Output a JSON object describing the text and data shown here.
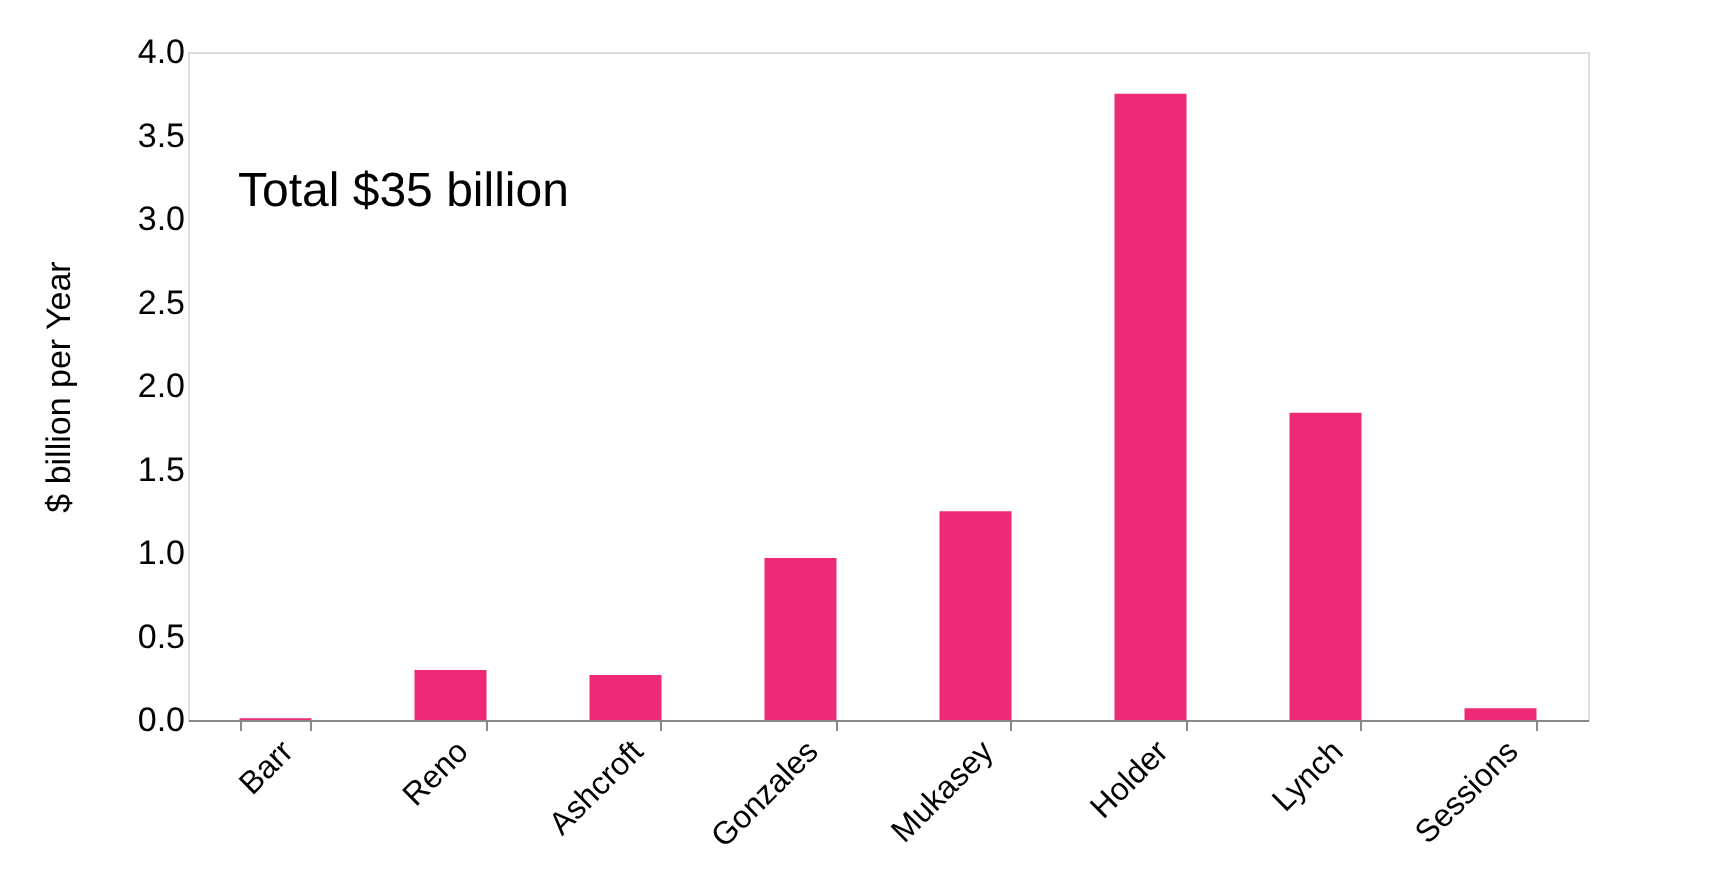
{
  "chart_data": {
    "type": "bar",
    "ylabel": "$ billion per Year",
    "categories": [
      "Barr",
      "Reno",
      "Ashcroft",
      "Gonzales",
      "Mukasey",
      "Holder",
      "Lynch",
      "Sessions"
    ],
    "values": [
      0.01,
      0.3,
      0.27,
      0.97,
      1.25,
      3.75,
      1.84,
      0.07
    ],
    "color": "#ee2a76",
    "ylim": [
      0,
      4
    ],
    "yticks": [
      {
        "value": 0,
        "label": "0.0"
      },
      {
        "value": 0.5,
        "label": "0.5"
      },
      {
        "value": 1,
        "label": "1.0"
      },
      {
        "value": 1.5,
        "label": "1.5"
      },
      {
        "value": 2,
        "label": "2.0"
      },
      {
        "value": 2.5,
        "label": "2.5"
      },
      {
        "value": 3,
        "label": "3.0"
      },
      {
        "value": 3.5,
        "label": "3.5"
      },
      {
        "value": 4,
        "label": "4.0"
      }
    ],
    "grid": false,
    "annotations": [
      "Total $35 billion"
    ]
  }
}
